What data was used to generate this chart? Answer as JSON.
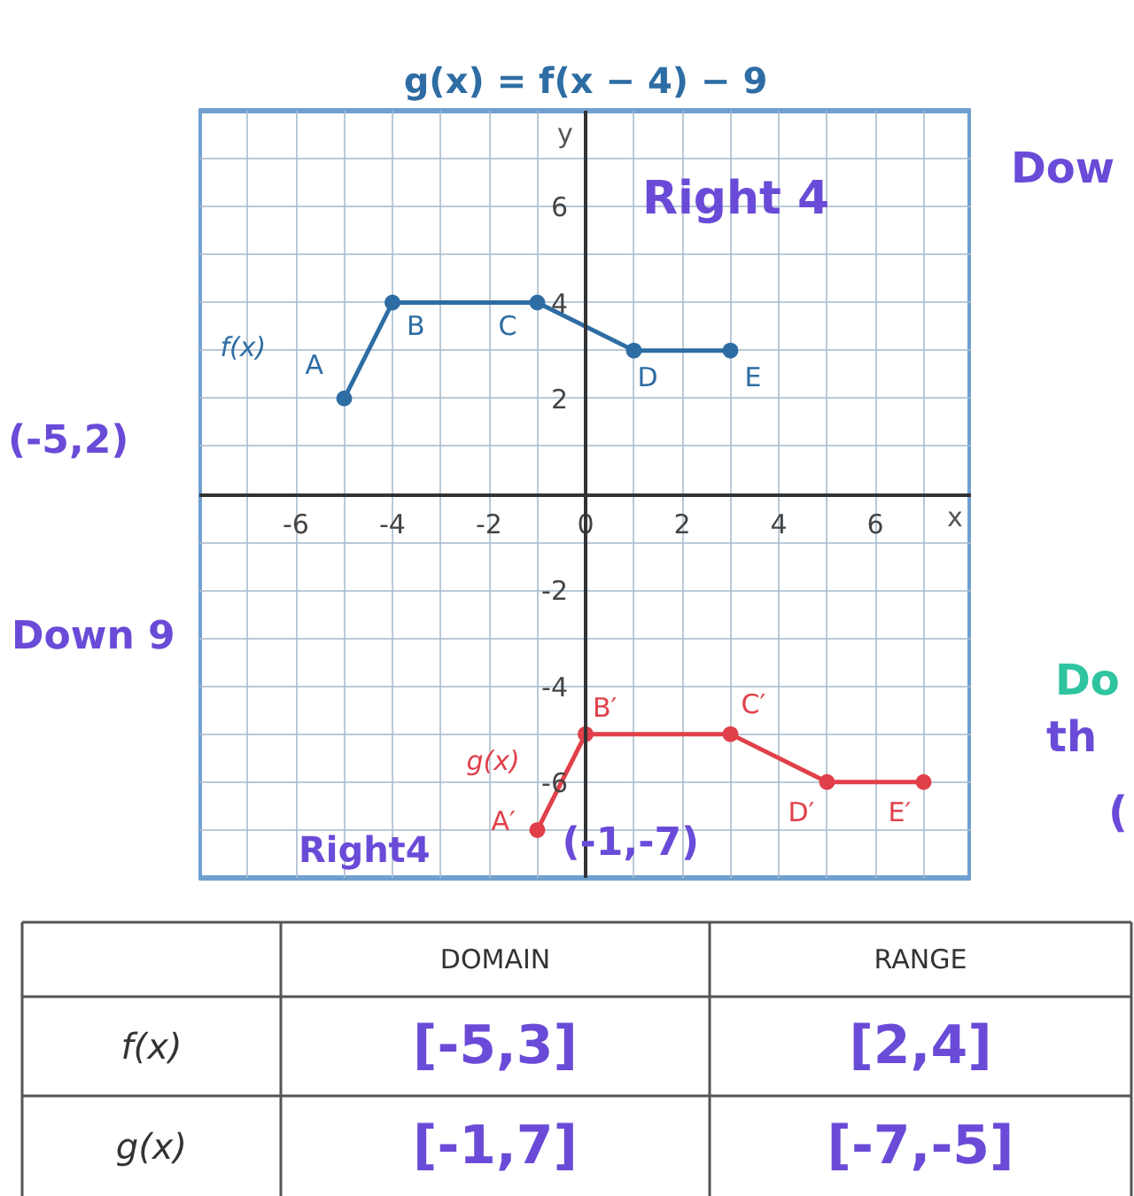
{
  "chart_data": [
    {
      "type": "line",
      "title": "g(x) = f(x − 4) − 9",
      "xlabel": "x",
      "ylabel": "y",
      "series": [
        {
          "name": "f(x)",
          "color": "#2e6da4",
          "x": [
            -5,
            -4,
            -1,
            1,
            3
          ],
          "values": [
            2,
            4,
            4,
            3,
            3
          ]
        },
        {
          "name": "g(x)",
          "color": "#e0404a",
          "x": [
            -1,
            0,
            3,
            5,
            7
          ],
          "values": [
            -7,
            -5,
            -5,
            -6,
            -6
          ]
        }
      ],
      "xlim": [
        -8,
        8
      ],
      "ylim": [
        -8,
        8
      ],
      "xticks": [
        {
          "value": -7,
          "label": null
        },
        -6,
        {
          "value": -5,
          "label": null
        },
        -4,
        {
          "value": -3,
          "label": null
        },
        -2,
        {
          "value": -1,
          "label": null
        },
        0,
        {
          "value": 1,
          "label": null
        },
        2,
        {
          "value": 3,
          "label": null
        },
        4,
        {
          "value": 5,
          "label": null
        },
        6,
        {
          "value": 7,
          "label": null
        }
      ],
      "yticks": [
        {
          "value": -7,
          "label": null
        },
        -6,
        {
          "value": -5,
          "label": null
        },
        -4,
        {
          "value": -3,
          "label": null
        },
        -2,
        {
          "value": -1,
          "label": null
        },
        {
          "value": 0,
          "label": null
        },
        {
          "value": 1,
          "label": null
        },
        2,
        {
          "value": 3,
          "label": null
        },
        4,
        {
          "value": 5,
          "label": null
        },
        6,
        {
          "value": 7,
          "label": null
        }
      ],
      "grid": true,
      "legend": false,
      "marker": "circle",
      "line_style": "solid",
      "annotations": [
        {
          "text": "A",
          "x": -5,
          "y": 2
        },
        {
          "text": "B",
          "x": -4,
          "y": 4
        },
        {
          "text": "C",
          "x": -1,
          "y": 4
        },
        {
          "text": "D",
          "x": 1,
          "y": 3
        },
        {
          "text": "E",
          "x": 3,
          "y": 3
        },
        {
          "text": "A′",
          "x": -1,
          "y": -7
        },
        {
          "text": "B′",
          "x": 0,
          "y": -5
        },
        {
          "text": "C′",
          "x": 3,
          "y": -5
        },
        {
          "text": "D′",
          "x": 5,
          "y": -6
        },
        {
          "text": "E′",
          "x": 7,
          "y": -6
        },
        "(-5,2)",
        {
          "text": "(-1,-7)",
          "x": -1,
          "y": -7
        },
        "Dow",
        "Right 4",
        "Down 9",
        "Right4",
        "Do",
        "th",
        "("
      ]
    },
    {
      "type": "other",
      "annotations": [
        "DOMAIN",
        "RANGE",
        "f(x)",
        "[-5,3]",
        "[2,4]",
        "g(x)",
        "[-1,7]",
        "[-7,-5]"
      ]
    }
  ]
}
